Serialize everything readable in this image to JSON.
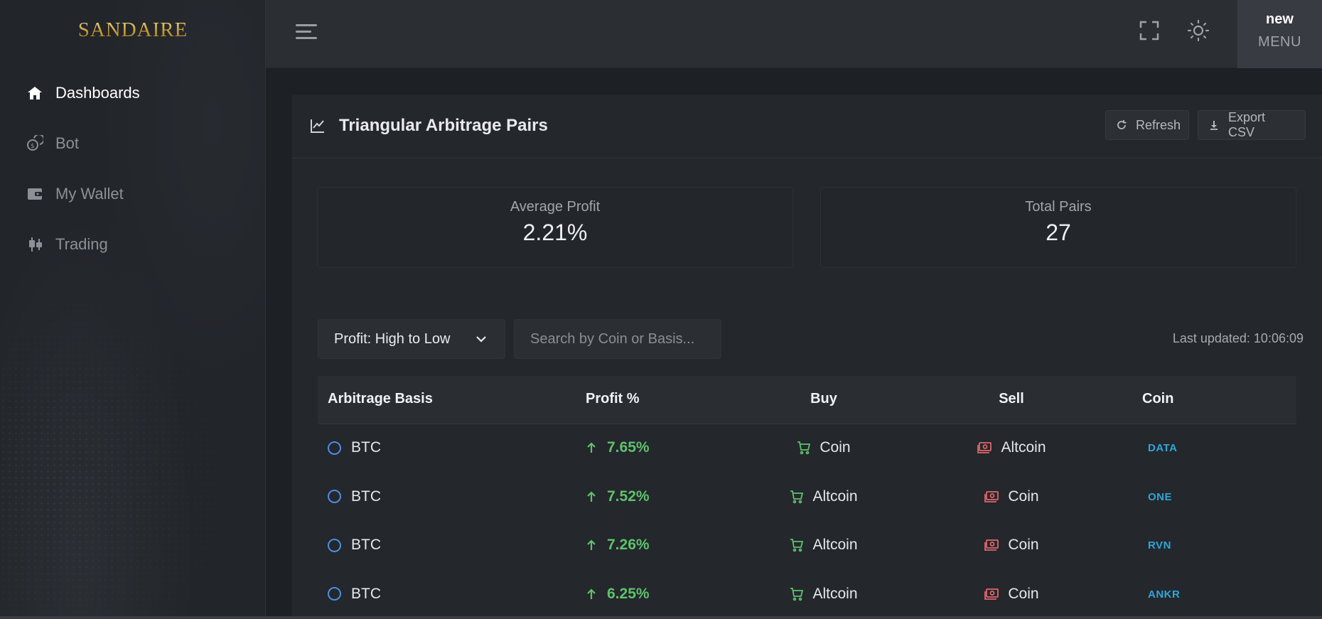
{
  "brand": {
    "logo_text": "SANDAIRE",
    "logo_color": "#d8b44a"
  },
  "sidebar": {
    "items": [
      {
        "label": "Dashboards",
        "icon": "home-icon",
        "active": true
      },
      {
        "label": "Bot",
        "icon": "coins-icon",
        "active": false
      },
      {
        "label": "My Wallet",
        "icon": "wallet-icon",
        "active": false
      },
      {
        "label": "Trading",
        "icon": "candlestick-icon",
        "active": false
      }
    ]
  },
  "topbar": {
    "menu_icon": "hamburger-icon",
    "fullscreen_icon": "fullscreen-icon",
    "theme_icon": "sun-icon",
    "user_name": "new",
    "user_role": "MENU"
  },
  "card": {
    "title": "Triangular Arbitrage Pairs",
    "title_icon": "line-chart-icon",
    "refresh_label": "Refresh",
    "export_label": "Export CSV"
  },
  "stats": {
    "average_profit_label": "Average Profit",
    "average_profit_value": "2.21%",
    "total_pairs_label": "Total Pairs",
    "total_pairs_value": "27"
  },
  "filters": {
    "sort_value": "Profit: High to Low",
    "search_placeholder": "Search by Coin or Basis...",
    "last_updated": "Last updated: 10:06:09"
  },
  "table": {
    "headers": {
      "basis": "Arbitrage Basis",
      "profit": "Profit %",
      "buy": "Buy",
      "sell": "Sell",
      "coin": "Coin"
    },
    "rows": [
      {
        "basis": "BTC",
        "profit": "7.65%",
        "buy": "Coin",
        "sell": "Altcoin",
        "coin": "DATA"
      },
      {
        "basis": "BTC",
        "profit": "7.52%",
        "buy": "Altcoin",
        "sell": "Coin",
        "coin": "ONE"
      },
      {
        "basis": "BTC",
        "profit": "7.26%",
        "buy": "Altcoin",
        "sell": "Coin",
        "coin": "RVN"
      },
      {
        "basis": "BTC",
        "profit": "6.25%",
        "buy": "Altcoin",
        "sell": "Coin",
        "coin": "ANKR"
      }
    ]
  },
  "colors": {
    "profit_positive": "#5ec26b",
    "coin_tag": "#2aa8d8",
    "radio": "#4a8ee6",
    "sell_icon": "#e0666a",
    "buy_icon": "#5ec26b"
  }
}
